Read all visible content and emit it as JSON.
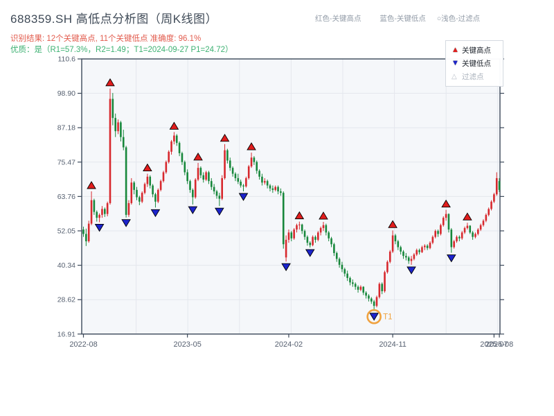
{
  "header": {
    "title": "688359.SH 高低点分析图（周K线图）",
    "subtitle_result": "识别结果: 12个关键高点, 11个关键低点  准确度: 96.1%",
    "subtitle_quality": "优质：是（R1=57.3%，R2=1.49；T1=2024-09-27 P1=24.72）",
    "top_legend": {
      "high": "红色-关键高点",
      "low": "蓝色-关键低点",
      "filtered": "○浅色-过滤点"
    }
  },
  "legend_box": {
    "high_label": "关键高点",
    "low_label": "关键低点",
    "filtered_label": "过滤点",
    "high_icon": "▲",
    "low_icon": "▼",
    "filtered_icon": "△"
  },
  "colors": {
    "candle_up": "#d7282d",
    "candle_down": "#17873b",
    "marker_high": "#e11d1d",
    "marker_low": "#1c24cc",
    "marker_stroke": "#000000",
    "t1_orange": "#f0a23f",
    "frame": "#3b4859",
    "grid": "#e4e7ed",
    "plot_bg": "#f5f7fa",
    "tick_label": "#566070",
    "subtitle_red": "#e25c4e",
    "subtitle_green": "#3eb273"
  },
  "chart_data": {
    "type": "candlestick",
    "title": "688359.SH 高低点分析图（周K线图）",
    "interval": "weekly",
    "ylim": [
      16.91,
      110.6
    ],
    "grid": true,
    "y_ticks": [
      {
        "label": "110.6",
        "value": 110.6
      },
      {
        "label": "98.90",
        "value": 98.9
      },
      {
        "label": "87.18",
        "value": 87.18
      },
      {
        "label": "75.47",
        "value": 75.47
      },
      {
        "label": "63.76",
        "value": 63.76
      },
      {
        "label": "52.05",
        "value": 52.05
      },
      {
        "label": "40.34",
        "value": 40.34
      },
      {
        "label": "28.62",
        "value": 28.62
      },
      {
        "label": "16.91",
        "value": 16.91
      }
    ],
    "x_ticks": [
      {
        "index": 0,
        "label": "2022-08"
      },
      {
        "index": 39,
        "label": "2023-05"
      },
      {
        "index": 77,
        "label": "2024-02"
      },
      {
        "index": 116,
        "label": "2024-11"
      },
      {
        "index": 154,
        "label": "2025-07"
      },
      {
        "index": 156,
        "label": "2025-08"
      }
    ],
    "bars_format": [
      "open",
      "high",
      "low",
      "close"
    ],
    "bars": [
      [
        52.5,
        53.5,
        50.0,
        51.0
      ],
      [
        51.0,
        52.8,
        46.9,
        48.5
      ],
      [
        48.5,
        55.5,
        48.0,
        54.5
      ],
      [
        54.5,
        65.5,
        54.0,
        62.5
      ],
      [
        62.5,
        63.0,
        57.5,
        58.5
      ],
      [
        58.5,
        59.0,
        55.2,
        56.5
      ],
      [
        56.5,
        58.0,
        55.0,
        57.5
      ],
      [
        57.5,
        60.5,
        56.5,
        59.5
      ],
      [
        59.5,
        60.0,
        56.8,
        57.8
      ],
      [
        57.8,
        62.0,
        57.0,
        61.5
      ],
      [
        61.5,
        100.5,
        61.0,
        97.0
      ],
      [
        97.0,
        99.0,
        88.0,
        90.5
      ],
      [
        90.5,
        92.0,
        84.0,
        86.0
      ],
      [
        86.0,
        90.0,
        85.0,
        89.0
      ],
      [
        89.0,
        89.5,
        82.5,
        84.0
      ],
      [
        84.0,
        86.5,
        79.5,
        80.5
      ],
      [
        80.5,
        81.0,
        56.6,
        57.5
      ],
      [
        57.5,
        62.5,
        56.8,
        61.5
      ],
      [
        61.5,
        70.0,
        61.0,
        68.5
      ],
      [
        68.5,
        69.0,
        64.5,
        66.0
      ],
      [
        66.0,
        67.0,
        62.5,
        63.5
      ],
      [
        63.5,
        64.0,
        60.8,
        62.0
      ],
      [
        62.0,
        65.5,
        61.5,
        65.0
      ],
      [
        65.0,
        68.5,
        64.5,
        68.0
      ],
      [
        68.0,
        71.5,
        67.0,
        70.5
      ],
      [
        70.5,
        71.0,
        66.5,
        67.5
      ],
      [
        67.5,
        68.0,
        63.5,
        64.5
      ],
      [
        64.5,
        65.0,
        60.0,
        62.0
      ],
      [
        62.0,
        66.5,
        61.5,
        66.0
      ],
      [
        66.0,
        69.5,
        65.5,
        69.0
      ],
      [
        69.0,
        72.5,
        68.5,
        72.0
      ],
      [
        72.0,
        76.0,
        71.5,
        75.5
      ],
      [
        75.5,
        79.5,
        75.0,
        79.0
      ],
      [
        79.0,
        83.0,
        78.0,
        82.5
      ],
      [
        82.5,
        85.7,
        81.5,
        84.5
      ],
      [
        84.5,
        85.0,
        81.0,
        82.0
      ],
      [
        82.0,
        82.5,
        77.5,
        78.5
      ],
      [
        78.5,
        79.0,
        74.5,
        75.5
      ],
      [
        75.5,
        76.0,
        71.0,
        72.0
      ],
      [
        72.0,
        73.0,
        68.0,
        69.0
      ],
      [
        69.0,
        69.5,
        65.0,
        66.0
      ],
      [
        66.0,
        66.5,
        61.0,
        63.5
      ],
      [
        63.5,
        70.0,
        63.0,
        69.5
      ],
      [
        69.5,
        75.2,
        69.0,
        73.5
      ],
      [
        73.5,
        74.0,
        70.0,
        71.0
      ],
      [
        71.0,
        72.0,
        68.5,
        69.5
      ],
      [
        69.5,
        72.5,
        69.0,
        72.0
      ],
      [
        72.0,
        72.5,
        68.0,
        69.0
      ],
      [
        69.0,
        70.0,
        66.0,
        67.0
      ],
      [
        67.0,
        68.0,
        64.5,
        65.5
      ],
      [
        65.5,
        66.0,
        63.0,
        64.0
      ],
      [
        64.0,
        65.0,
        60.5,
        63.0
      ],
      [
        63.0,
        71.0,
        62.5,
        70.0
      ],
      [
        70.0,
        81.6,
        69.5,
        79.5
      ],
      [
        79.5,
        80.0,
        75.0,
        76.0
      ],
      [
        76.0,
        77.0,
        72.5,
        73.5
      ],
      [
        73.5,
        74.0,
        70.5,
        71.5
      ],
      [
        71.5,
        72.0,
        69.0,
        70.0
      ],
      [
        70.0,
        71.5,
        68.0,
        68.8
      ],
      [
        68.8,
        69.5,
        66.8,
        67.5
      ],
      [
        67.5,
        68.0,
        65.5,
        67.2
      ],
      [
        67.2,
        70.5,
        66.8,
        70.0
      ],
      [
        70.0,
        74.5,
        69.5,
        74.0
      ],
      [
        74.0,
        78.7,
        73.5,
        77.0
      ],
      [
        77.0,
        77.5,
        74.5,
        75.5
      ],
      [
        75.5,
        76.0,
        71.5,
        72.5
      ],
      [
        72.5,
        73.0,
        69.5,
        70.5
      ],
      [
        70.5,
        71.5,
        67.5,
        68.5
      ],
      [
        68.5,
        70.0,
        67.8,
        69.0
      ],
      [
        69.0,
        69.5,
        66.5,
        67.5
      ],
      [
        67.5,
        68.0,
        65.5,
        66.5
      ],
      [
        66.5,
        67.5,
        65.0,
        66.0
      ],
      [
        66.0,
        67.5,
        65.5,
        67.0
      ],
      [
        67.0,
        67.5,
        64.5,
        65.5
      ],
      [
        65.5,
        66.5,
        64.0,
        65.0
      ],
      [
        65.0,
        65.5,
        46.0,
        47.5
      ],
      [
        43.0,
        50.5,
        41.6,
        49.0
      ],
      [
        49.0,
        52.5,
        48.0,
        51.5
      ],
      [
        51.5,
        52.0,
        48.5,
        49.5
      ],
      [
        49.5,
        53.0,
        49.0,
        52.5
      ],
      [
        52.5,
        54.5,
        51.5,
        54.0
      ],
      [
        54.0,
        55.2,
        52.5,
        54.2
      ],
      [
        54.2,
        54.5,
        51.0,
        52.0
      ],
      [
        52.0,
        52.5,
        49.0,
        50.0
      ],
      [
        50.0,
        50.5,
        47.0,
        48.0
      ],
      [
        48.0,
        48.5,
        46.4,
        47.2
      ],
      [
        47.2,
        50.5,
        46.8,
        50.0
      ],
      [
        50.0,
        50.5,
        48.0,
        49.0
      ],
      [
        49.0,
        52.0,
        48.5,
        51.5
      ],
      [
        51.5,
        53.5,
        50.5,
        53.0
      ],
      [
        53.0,
        55.1,
        52.0,
        54.0
      ],
      [
        54.0,
        54.5,
        50.5,
        51.5
      ],
      [
        51.5,
        52.0,
        48.5,
        49.5
      ],
      [
        49.5,
        50.0,
        46.5,
        47.5
      ],
      [
        47.5,
        48.0,
        43.5,
        44.5
      ],
      [
        44.5,
        45.0,
        41.5,
        42.5
      ],
      [
        42.5,
        43.0,
        39.5,
        40.5
      ],
      [
        40.5,
        41.5,
        38.0,
        39.0
      ],
      [
        39.0,
        39.5,
        36.5,
        37.5
      ],
      [
        37.5,
        38.5,
        35.0,
        36.0
      ],
      [
        36.0,
        36.5,
        33.5,
        34.5
      ],
      [
        34.5,
        35.5,
        33.0,
        34.0
      ],
      [
        34.0,
        34.5,
        32.0,
        33.0
      ],
      [
        33.0,
        33.5,
        31.0,
        32.0
      ],
      [
        32.0,
        33.5,
        31.5,
        33.0
      ],
      [
        33.0,
        33.2,
        30.2,
        31.0
      ],
      [
        31.0,
        31.5,
        29.0,
        30.0
      ],
      [
        30.0,
        30.5,
        28.0,
        29.0
      ],
      [
        29.0,
        29.5,
        27.2,
        28.0
      ],
      [
        28.0,
        28.5,
        24.72,
        26.5
      ],
      [
        26.5,
        30.0,
        26.0,
        29.5
      ],
      [
        29.5,
        34.5,
        29.0,
        34.0
      ],
      [
        34.0,
        34.5,
        30.5,
        31.5
      ],
      [
        31.5,
        38.5,
        31.0,
        38.0
      ],
      [
        38.0,
        42.0,
        37.5,
        41.5
      ],
      [
        41.5,
        45.5,
        41.0,
        45.0
      ],
      [
        45.0,
        52.2,
        44.5,
        50.5
      ],
      [
        50.5,
        51.0,
        47.5,
        48.5
      ],
      [
        48.5,
        49.0,
        45.5,
        46.5
      ],
      [
        46.5,
        47.0,
        44.0,
        45.0
      ],
      [
        45.0,
        45.5,
        42.5,
        43.5
      ],
      [
        43.5,
        44.5,
        42.0,
        43.0
      ],
      [
        43.0,
        43.5,
        40.8,
        41.8
      ],
      [
        41.8,
        43.5,
        40.5,
        42.5
      ],
      [
        42.5,
        44.5,
        42.0,
        44.0
      ],
      [
        44.0,
        46.0,
        43.5,
        45.5
      ],
      [
        45.5,
        46.0,
        44.0,
        44.8
      ],
      [
        44.8,
        47.0,
        44.5,
        46.5
      ],
      [
        46.5,
        47.5,
        45.5,
        47.0
      ],
      [
        47.0,
        47.5,
        45.5,
        46.2
      ],
      [
        46.2,
        48.5,
        45.8,
        48.0
      ],
      [
        48.0,
        50.5,
        47.5,
        50.0
      ],
      [
        50.0,
        52.5,
        49.5,
        52.0
      ],
      [
        52.0,
        52.5,
        50.0,
        51.0
      ],
      [
        51.0,
        54.5,
        50.5,
        54.0
      ],
      [
        54.0,
        57.0,
        53.5,
        56.5
      ],
      [
        56.5,
        59.2,
        55.5,
        57.8
      ],
      [
        57.8,
        58.0,
        51.5,
        52.5
      ],
      [
        52.5,
        53.0,
        44.6,
        46.5
      ],
      [
        46.5,
        49.0,
        46.0,
        48.5
      ],
      [
        48.5,
        50.5,
        48.0,
        50.0
      ],
      [
        50.0,
        50.5,
        48.5,
        49.5
      ],
      [
        49.5,
        52.0,
        49.0,
        51.5
      ],
      [
        51.5,
        53.5,
        51.0,
        53.0
      ],
      [
        53.0,
        54.8,
        52.5,
        53.8
      ],
      [
        53.8,
        54.0,
        51.0,
        51.5
      ],
      [
        51.5,
        52.0,
        49.0,
        50.0
      ],
      [
        50.0,
        51.5,
        49.5,
        51.0
      ],
      [
        51.0,
        53.0,
        50.5,
        52.5
      ],
      [
        52.5,
        54.5,
        52.0,
        54.0
      ],
      [
        54.0,
        56.0,
        53.5,
        55.5
      ],
      [
        55.5,
        58.0,
        55.0,
        57.5
      ],
      [
        57.5,
        60.0,
        57.0,
        59.5
      ],
      [
        59.5,
        62.5,
        59.0,
        62.0
      ],
      [
        62.0,
        65.0,
        61.5,
        64.5
      ],
      [
        64.5,
        72.0,
        64.0,
        70.0
      ],
      [
        69.0,
        70.0,
        65.3,
        66.0
      ]
    ],
    "key_high_indices": [
      3,
      10,
      24,
      34,
      43,
      53,
      63,
      81,
      90,
      116,
      136,
      144
    ],
    "key_low_indices": [
      6,
      16,
      27,
      41,
      51,
      60,
      76,
      85,
      109,
      123,
      138
    ],
    "key_high_count": 12,
    "key_low_count": 11,
    "accuracy_pct": 96.1,
    "t1_annotation": {
      "index": 109,
      "label": "T1",
      "date": "2024-09-27",
      "price": 24.72
    },
    "legend_position": "top-right"
  }
}
